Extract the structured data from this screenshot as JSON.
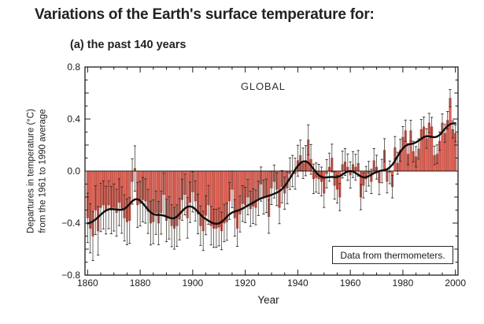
{
  "page": {
    "title": "Variations of the Earth's surface temperature for:",
    "subtitle": "(a) the past 140 years"
  },
  "chart_data": {
    "type": "bar",
    "label": "GLOBAL",
    "annotation": "Data from thermometers.",
    "xlabel": "Year",
    "ylabel_line1": "Departures in temperature (°C)",
    "ylabel_line2": "from the 1961 to 1990 average",
    "xlim": [
      1859,
      2001
    ],
    "ylim": [
      -0.8,
      0.8
    ],
    "xticks": [
      1860,
      1880,
      1900,
      1920,
      1940,
      1960,
      1980,
      2000
    ],
    "xtick_minor_step": 5,
    "yticks": [
      -0.8,
      -0.4,
      0.0,
      0.4,
      0.8
    ],
    "ytick_labels": [
      "−0.8",
      "−0.4",
      "0.0",
      "0.4",
      "0.8"
    ],
    "ytick_minor_step": 0.1,
    "year_start": 1860,
    "year_end": 2000,
    "values": [
      -0.36,
      -0.44,
      -0.5,
      -0.3,
      -0.46,
      -0.28,
      -0.26,
      -0.3,
      -0.26,
      -0.3,
      -0.28,
      -0.32,
      -0.24,
      -0.3,
      -0.36,
      -0.39,
      -0.38,
      -0.08,
      0.02,
      -0.26,
      -0.25,
      -0.22,
      -0.23,
      -0.31,
      -0.4,
      -0.39,
      -0.32,
      -0.4,
      -0.32,
      -0.18,
      -0.38,
      -0.36,
      -0.42,
      -0.44,
      -0.42,
      -0.37,
      -0.22,
      -0.18,
      -0.36,
      -0.24,
      -0.16,
      -0.23,
      -0.33,
      -0.42,
      -0.46,
      -0.34,
      -0.26,
      -0.42,
      -0.44,
      -0.44,
      -0.43,
      -0.46,
      -0.4,
      -0.39,
      -0.23,
      -0.14,
      -0.36,
      -0.44,
      -0.33,
      -0.25,
      -0.26,
      -0.2,
      -0.29,
      -0.27,
      -0.28,
      -0.21,
      -0.1,
      -0.2,
      -0.19,
      -0.35,
      -0.13,
      -0.08,
      -0.14,
      -0.28,
      -0.12,
      -0.17,
      -0.13,
      -0.02,
      0.0,
      -0.02,
      0.08,
      0.12,
      0.06,
      0.08,
      0.24,
      0.09,
      -0.06,
      -0.05,
      -0.06,
      -0.08,
      -0.17,
      -0.02,
      0.03,
      0.1,
      -0.11,
      -0.14,
      -0.2,
      0.05,
      0.07,
      0.03,
      -0.03,
      0.05,
      0.03,
      0.06,
      -0.2,
      -0.11,
      -0.06,
      -0.02,
      -0.08,
      0.08,
      0.03,
      -0.09,
      0.0,
      0.16,
      -0.08,
      -0.01,
      -0.12,
      0.18,
      0.06,
      0.16,
      0.26,
      0.31,
      0.13,
      0.31,
      0.15,
      0.11,
      0.17,
      0.32,
      0.34,
      0.25,
      0.37,
      0.34,
      0.12,
      0.13,
      0.23,
      0.37,
      0.29,
      0.39,
      0.56,
      0.32,
      0.29
    ],
    "error_bars": {
      "meaning": "uncertainty whiskers on each annual bar",
      "half_length_1860": 0.19,
      "half_length_2000": 0.065,
      "interpolation": "linear"
    },
    "smoothed_series": "black curve = ~10-year smoothed annual values",
    "colors": {
      "bar_fill": "#E4675B",
      "bar_edge": "#A93326",
      "error_bar": "#4A4540",
      "error_cap": "#2E2A28",
      "smooth_line": "#0D0D0D",
      "axis": "#1C1C1C",
      "zero_line": "#2A1A16"
    },
    "legend_position": "annotation box bottom-right inside plot",
    "grid": false
  }
}
